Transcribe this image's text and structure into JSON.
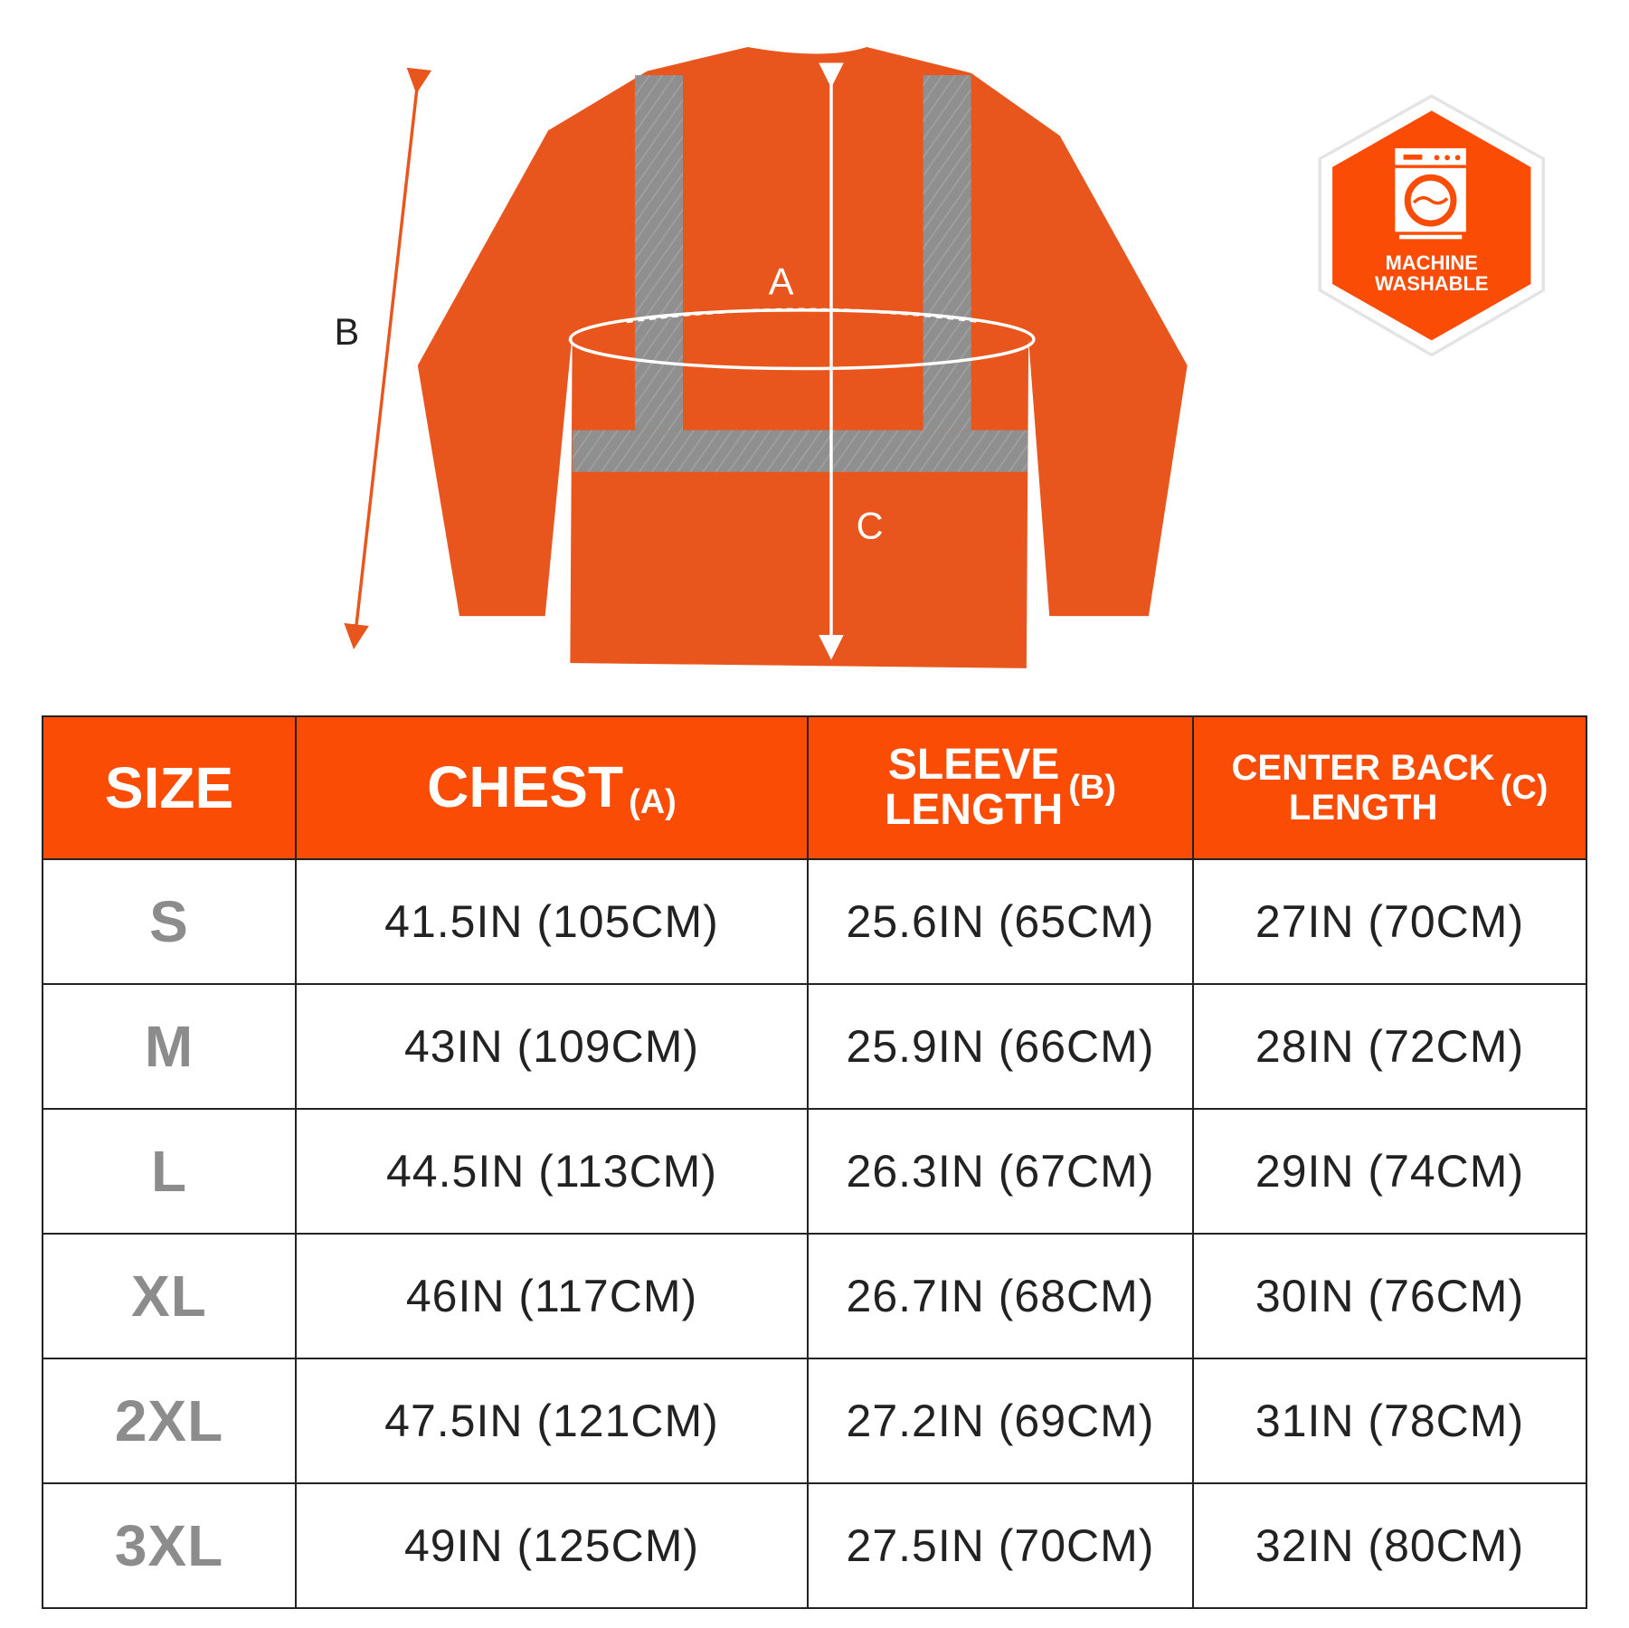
{
  "diagram": {
    "labels": {
      "a": "A",
      "b": "B",
      "c": "C"
    },
    "shirt_color": "#e8561e",
    "stripe_color": "#8f8f8f"
  },
  "badge": {
    "icon": "washing-machine-icon",
    "line1": "MACHINE",
    "line2": "WASHABLE",
    "color": "#fb4c06"
  },
  "table": {
    "header_color": "#fb4c06",
    "headers": {
      "size": "SIZE",
      "chest": "CHEST",
      "chest_tag": "(A)",
      "sleeve_1": "SLEEVE",
      "sleeve_2": "LENGTH",
      "sleeve_tag": "(B)",
      "back_1": "CENTER BACK",
      "back_2": "LENGTH",
      "back_tag": "(C)"
    },
    "rows": [
      {
        "size": "S",
        "chest": "41.5IN (105CM)",
        "sleeve": "25.6IN (65CM)",
        "back": "27IN (70CM)"
      },
      {
        "size": "M",
        "chest": "43IN (109CM)",
        "sleeve": "25.9IN (66CM)",
        "back": "28IN (72CM)"
      },
      {
        "size": "L",
        "chest": "44.5IN (113CM)",
        "sleeve": "26.3IN (67CM)",
        "back": "29IN (74CM)"
      },
      {
        "size": "XL",
        "chest": "46IN (117CM)",
        "sleeve": "26.7IN (68CM)",
        "back": "30IN (76CM)"
      },
      {
        "size": "2XL",
        "chest": "47.5IN (121CM)",
        "sleeve": "27.2IN (69CM)",
        "back": "31IN (78CM)"
      },
      {
        "size": "3XL",
        "chest": "49IN (125CM)",
        "sleeve": "27.5IN (70CM)",
        "back": "32IN (80CM)"
      }
    ]
  }
}
